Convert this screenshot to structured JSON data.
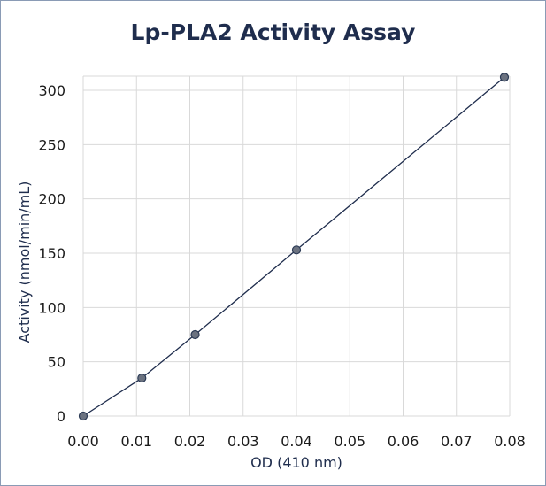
{
  "chart_data": {
    "type": "scatter",
    "title": "Lp-PLA2 Activity Assay",
    "xlabel": "OD (410 nm)",
    "ylabel": "Activity (nmol/min/mL)",
    "xlim": [
      0,
      0.08
    ],
    "ylim": [
      0,
      300
    ],
    "x_ticks": [
      "0.00",
      "0.01",
      "0.02",
      "0.03",
      "0.04",
      "0.05",
      "0.06",
      "0.07",
      "0.08"
    ],
    "y_ticks": [
      "0",
      "50",
      "100",
      "150",
      "200",
      "250",
      "300"
    ],
    "grid": true,
    "series": [
      {
        "points": [
          {
            "x": 0.0,
            "y": 0
          },
          {
            "x": 0.011,
            "y": 35
          },
          {
            "x": 0.021,
            "y": 75
          },
          {
            "x": 0.04,
            "y": 153
          },
          {
            "x": 0.079,
            "y": 312
          }
        ]
      }
    ],
    "colors": {
      "line": "#1f2d4d",
      "marker_fill": "#6b7280",
      "marker_stroke": "#2b3a55",
      "grid": "#d9d9d9"
    }
  }
}
